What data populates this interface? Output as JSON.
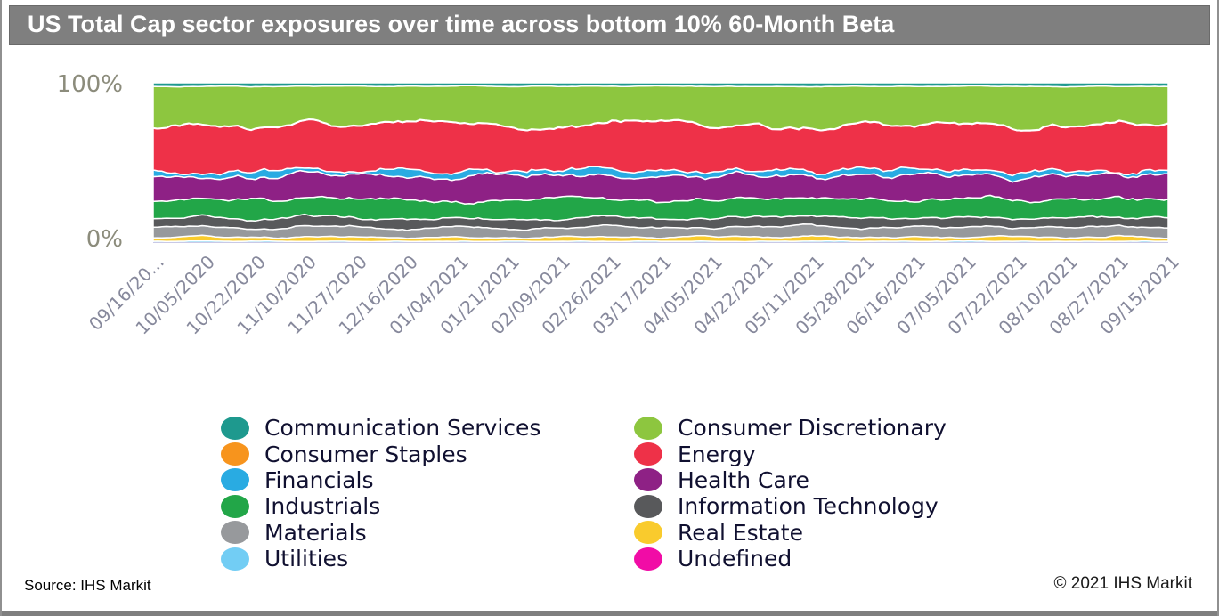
{
  "title": "US Total Cap sector exposures over time across bottom 10% 60-Month Beta",
  "chart": {
    "y_axis": [
      "100%",
      "0%"
    ]
  },
  "footer": {
    "source": "Source: IHS Markit",
    "copyright": "© 2021 IHS Markit"
  },
  "chart_data": {
    "type": "area",
    "stacked": true,
    "title": "US Total Cap sector exposures over time across bottom 10% 60-Month Beta",
    "xlabel": "",
    "ylabel": "",
    "ylim": [
      0,
      100
    ],
    "y_tick_labels": [
      "100%",
      "0%"
    ],
    "grid": false,
    "legend_position": "bottom",
    "categories": [
      "09/16/20...",
      "10/05/2020",
      "10/22/2020",
      "11/10/2020",
      "11/27/2020",
      "12/16/2020",
      "01/04/2021",
      "01/21/2021",
      "02/09/2021",
      "02/26/2021",
      "03/17/2021",
      "04/05/2021",
      "04/22/2021",
      "05/11/2021",
      "05/28/2021",
      "06/16/2021",
      "07/05/2021",
      "07/22/2021",
      "08/10/2021",
      "08/27/2021",
      "09/15/2021"
    ],
    "stack_order_bottom_to_top": [
      "Undefined",
      "Utilities",
      "Real Estate",
      "Materials",
      "Information Technology",
      "Industrials",
      "Health Care",
      "Financials",
      "Energy",
      "Consumer Staples",
      "Consumer Discretionary",
      "Communication Services"
    ],
    "legend_columns": [
      [
        "Communication Services",
        "Consumer Staples",
        "Financials",
        "Industrials",
        "Materials",
        "Utilities"
      ],
      [
        "Consumer Discretionary",
        "Energy",
        "Health Care",
        "Information Technology",
        "Real Estate",
        "Undefined"
      ]
    ],
    "series": [
      {
        "name": "Communication Services",
        "color": "#1e998e",
        "wiggle": 0.25,
        "values": [
          2.1,
          2.1,
          2.2,
          2.0,
          2.1,
          2.2,
          2.0,
          2.1,
          2.2,
          2.1,
          2.0,
          2.2,
          2.1,
          2.0,
          2.2,
          2.1,
          2.1,
          2.0,
          2.2,
          2.1,
          2.1
        ]
      },
      {
        "name": "Consumer Discretionary",
        "color": "#8dc63f",
        "wiggle": 1.8,
        "values": [
          24,
          22,
          25,
          21,
          24,
          22,
          21,
          24,
          26,
          22,
          21,
          24,
          22,
          25,
          21,
          24,
          22,
          25,
          23,
          21,
          23
        ]
      },
      {
        "name": "Consumer Staples",
        "color": "#f7941d",
        "wiggle": 0.05,
        "values": [
          0.3,
          0.3,
          0.3,
          0.3,
          0.3,
          0.3,
          0.3,
          0.3,
          0.3,
          0.3,
          0.3,
          0.3,
          0.3,
          0.3,
          0.3,
          0.3,
          0.3,
          0.3,
          0.3,
          0.3,
          0.3
        ]
      },
      {
        "name": "Energy",
        "color": "#ee3148",
        "wiggle": 2.2,
        "values": [
          26,
          29,
          24,
          29,
          26,
          29,
          31,
          26,
          24,
          29,
          31,
          27,
          26,
          23,
          28,
          26,
          29,
          24,
          26,
          30,
          27
        ]
      },
      {
        "name": "Financials",
        "color": "#29abe2",
        "wiggle": 1.2,
        "values": [
          3,
          2,
          4.5,
          3,
          2,
          4.5,
          3,
          2,
          4,
          5,
          3,
          2,
          4.5,
          3,
          5,
          3,
          2,
          4,
          3,
          2,
          3
        ]
      },
      {
        "name": "Health Care",
        "color": "#8e2185",
        "wiggle": 1.8,
        "values": [
          14,
          15.5,
          12.5,
          15,
          14,
          12.5,
          15.5,
          16,
          13,
          14,
          15.5,
          14,
          15,
          12.5,
          14,
          15.5,
          14,
          13,
          15,
          14,
          14
        ]
      },
      {
        "name": "Industrials",
        "color": "#22a648",
        "wiggle": 1.2,
        "values": [
          11,
          10,
          12.5,
          10,
          11,
          12.5,
          10,
          11,
          12.5,
          10,
          11,
          12.5,
          11,
          10,
          11,
          10,
          12,
          11,
          10,
          11,
          11
        ]
      },
      {
        "name": "Information Technology",
        "color": "#58595b",
        "wiggle": 0.7,
        "values": [
          5,
          6.5,
          5,
          6.5,
          5,
          6.5,
          5,
          6.5,
          5,
          6.5,
          5,
          6,
          6.5,
          5,
          6.5,
          5,
          6,
          5,
          6.5,
          5,
          6
        ]
      },
      {
        "name": "Materials",
        "color": "#97999c",
        "wiggle": 0.6,
        "values": [
          6,
          6,
          5,
          6.5,
          6,
          5,
          6.5,
          6,
          5,
          6.5,
          6,
          5,
          6.5,
          6,
          5,
          6.5,
          6,
          5,
          6.5,
          6,
          6
        ]
      },
      {
        "name": "Real Estate",
        "color": "#f9cb2d",
        "wiggle": 0.5,
        "values": [
          2,
          3,
          2,
          2.5,
          3,
          2,
          3,
          2,
          2.5,
          3,
          2,
          3,
          2,
          3,
          2,
          3,
          2,
          3,
          2,
          3,
          2
        ]
      },
      {
        "name": "Utilities",
        "color": "#72cdf4",
        "wiggle": 0.15,
        "values": [
          1,
          1,
          1,
          1,
          1,
          1,
          1,
          1,
          1,
          1,
          1,
          1,
          1,
          1,
          1,
          1,
          1,
          1,
          1,
          1,
          1
        ]
      },
      {
        "name": "Undefined",
        "color": "#f10ca6",
        "wiggle": 0,
        "values": [
          0,
          0,
          0,
          0,
          0,
          0,
          0,
          0,
          0,
          0,
          0,
          0,
          0,
          0,
          0,
          0,
          0,
          0,
          0,
          0,
          0
        ]
      }
    ]
  }
}
